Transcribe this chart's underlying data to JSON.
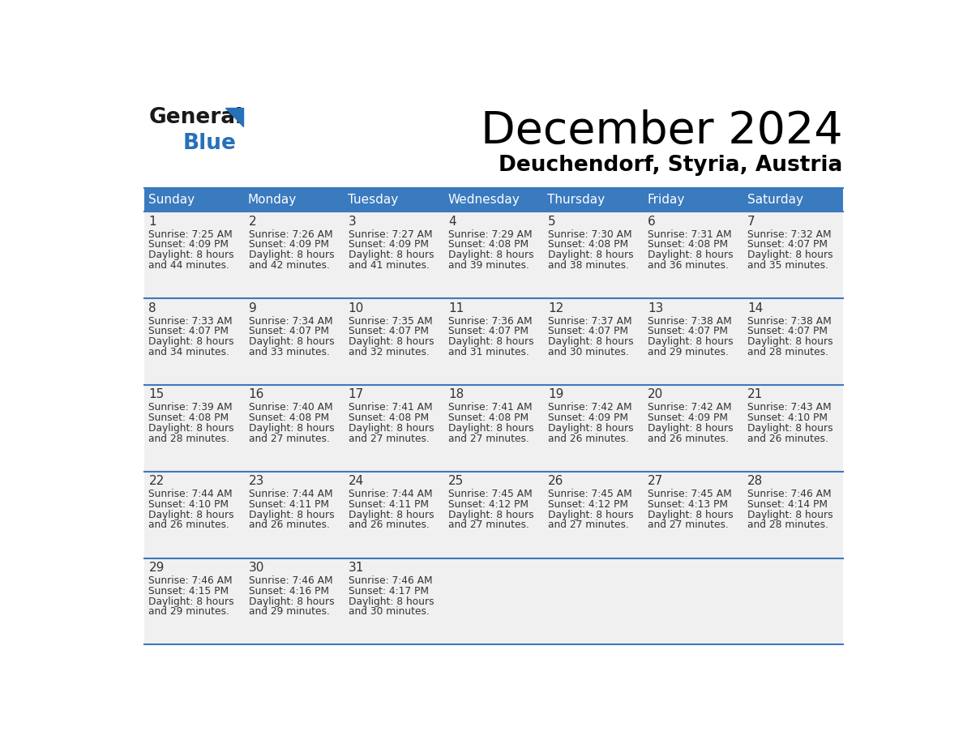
{
  "title": "December 2024",
  "subtitle": "Deuchendorf, Styria, Austria",
  "days_of_week": [
    "Sunday",
    "Monday",
    "Tuesday",
    "Wednesday",
    "Thursday",
    "Friday",
    "Saturday"
  ],
  "header_bg": "#3a7abf",
  "header_text": "#ffffff",
  "cell_bg": "#f0f0f0",
  "border_color": "#3a7abf",
  "separator_color": "#3a7abf",
  "text_color": "#333333",
  "day_num_color": "#333333",
  "calendar_data": [
    [
      {
        "day": 1,
        "sunrise": "7:25 AM",
        "sunset": "4:09 PM",
        "daylight": "8 hours and 44 minutes."
      },
      {
        "day": 2,
        "sunrise": "7:26 AM",
        "sunset": "4:09 PM",
        "daylight": "8 hours and 42 minutes."
      },
      {
        "day": 3,
        "sunrise": "7:27 AM",
        "sunset": "4:09 PM",
        "daylight": "8 hours and 41 minutes."
      },
      {
        "day": 4,
        "sunrise": "7:29 AM",
        "sunset": "4:08 PM",
        "daylight": "8 hours and 39 minutes."
      },
      {
        "day": 5,
        "sunrise": "7:30 AM",
        "sunset": "4:08 PM",
        "daylight": "8 hours and 38 minutes."
      },
      {
        "day": 6,
        "sunrise": "7:31 AM",
        "sunset": "4:08 PM",
        "daylight": "8 hours and 36 minutes."
      },
      {
        "day": 7,
        "sunrise": "7:32 AM",
        "sunset": "4:07 PM",
        "daylight": "8 hours and 35 minutes."
      }
    ],
    [
      {
        "day": 8,
        "sunrise": "7:33 AM",
        "sunset": "4:07 PM",
        "daylight": "8 hours and 34 minutes."
      },
      {
        "day": 9,
        "sunrise": "7:34 AM",
        "sunset": "4:07 PM",
        "daylight": "8 hours and 33 minutes."
      },
      {
        "day": 10,
        "sunrise": "7:35 AM",
        "sunset": "4:07 PM",
        "daylight": "8 hours and 32 minutes."
      },
      {
        "day": 11,
        "sunrise": "7:36 AM",
        "sunset": "4:07 PM",
        "daylight": "8 hours and 31 minutes."
      },
      {
        "day": 12,
        "sunrise": "7:37 AM",
        "sunset": "4:07 PM",
        "daylight": "8 hours and 30 minutes."
      },
      {
        "day": 13,
        "sunrise": "7:38 AM",
        "sunset": "4:07 PM",
        "daylight": "8 hours and 29 minutes."
      },
      {
        "day": 14,
        "sunrise": "7:38 AM",
        "sunset": "4:07 PM",
        "daylight": "8 hours and 28 minutes."
      }
    ],
    [
      {
        "day": 15,
        "sunrise": "7:39 AM",
        "sunset": "4:08 PM",
        "daylight": "8 hours and 28 minutes."
      },
      {
        "day": 16,
        "sunrise": "7:40 AM",
        "sunset": "4:08 PM",
        "daylight": "8 hours and 27 minutes."
      },
      {
        "day": 17,
        "sunrise": "7:41 AM",
        "sunset": "4:08 PM",
        "daylight": "8 hours and 27 minutes."
      },
      {
        "day": 18,
        "sunrise": "7:41 AM",
        "sunset": "4:08 PM",
        "daylight": "8 hours and 27 minutes."
      },
      {
        "day": 19,
        "sunrise": "7:42 AM",
        "sunset": "4:09 PM",
        "daylight": "8 hours and 26 minutes."
      },
      {
        "day": 20,
        "sunrise": "7:42 AM",
        "sunset": "4:09 PM",
        "daylight": "8 hours and 26 minutes."
      },
      {
        "day": 21,
        "sunrise": "7:43 AM",
        "sunset": "4:10 PM",
        "daylight": "8 hours and 26 minutes."
      }
    ],
    [
      {
        "day": 22,
        "sunrise": "7:44 AM",
        "sunset": "4:10 PM",
        "daylight": "8 hours and 26 minutes."
      },
      {
        "day": 23,
        "sunrise": "7:44 AM",
        "sunset": "4:11 PM",
        "daylight": "8 hours and 26 minutes."
      },
      {
        "day": 24,
        "sunrise": "7:44 AM",
        "sunset": "4:11 PM",
        "daylight": "8 hours and 26 minutes."
      },
      {
        "day": 25,
        "sunrise": "7:45 AM",
        "sunset": "4:12 PM",
        "daylight": "8 hours and 27 minutes."
      },
      {
        "day": 26,
        "sunrise": "7:45 AM",
        "sunset": "4:12 PM",
        "daylight": "8 hours and 27 minutes."
      },
      {
        "day": 27,
        "sunrise": "7:45 AM",
        "sunset": "4:13 PM",
        "daylight": "8 hours and 27 minutes."
      },
      {
        "day": 28,
        "sunrise": "7:46 AM",
        "sunset": "4:14 PM",
        "daylight": "8 hours and 28 minutes."
      }
    ],
    [
      {
        "day": 29,
        "sunrise": "7:46 AM",
        "sunset": "4:15 PM",
        "daylight": "8 hours and 29 minutes."
      },
      {
        "day": 30,
        "sunrise": "7:46 AM",
        "sunset": "4:16 PM",
        "daylight": "8 hours and 29 minutes."
      },
      {
        "day": 31,
        "sunrise": "7:46 AM",
        "sunset": "4:17 PM",
        "daylight": "8 hours and 30 minutes."
      },
      null,
      null,
      null,
      null
    ]
  ],
  "logo_general_color": "#1a1a1a",
  "logo_blue_color": "#2771b8",
  "logo_triangle_color": "#2771b8"
}
